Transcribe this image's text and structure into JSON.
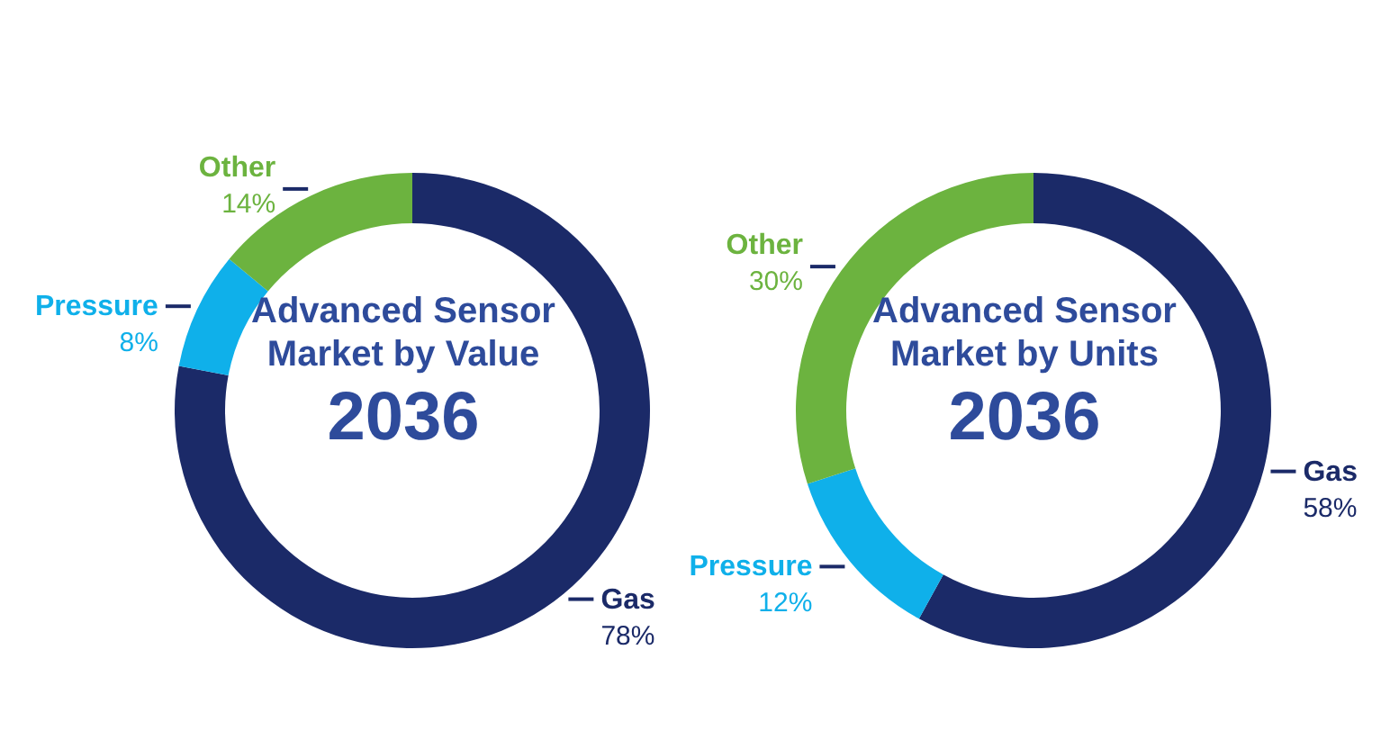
{
  "chart_data": [
    {
      "type": "donut",
      "title": "Advanced Sensor Market by Value",
      "subtitle": "2036",
      "categories": [
        "Gas",
        "Pressure",
        "Other"
      ],
      "values": [
        78,
        8,
        14
      ],
      "value_labels": [
        "78%",
        "8%",
        "14%"
      ],
      "colors": [
        "#1b2a68",
        "#0fb0ea",
        "#6cb33f"
      ],
      "legend": false
    },
    {
      "type": "donut",
      "title": "Advanced Sensor Market by Units",
      "subtitle": "2036",
      "categories": [
        "Gas",
        "Pressure",
        "Other"
      ],
      "values": [
        58,
        12,
        30
      ],
      "value_labels": [
        "58%",
        "12%",
        "30%"
      ],
      "colors": [
        "#1b2a68",
        "#0fb0ea",
        "#6cb33f"
      ],
      "legend": false
    }
  ]
}
